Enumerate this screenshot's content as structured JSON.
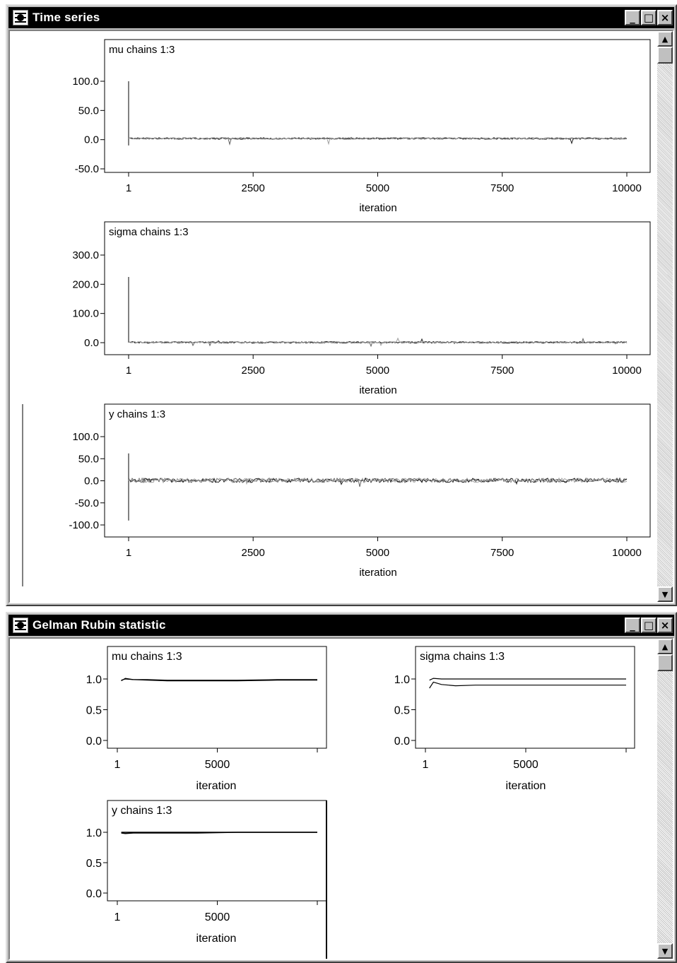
{
  "windows": {
    "time_series": {
      "title": "Time series",
      "buttons": {
        "minimize": "_",
        "maximize": "□",
        "close": "×"
      },
      "scroll": {
        "up": "▲",
        "down": "▼"
      }
    },
    "gelman_rubin": {
      "title": "Gelman Rubin statistic",
      "buttons": {
        "minimize": "_",
        "maximize": "□",
        "close": "×"
      },
      "scroll": {
        "up": "▲",
        "down": "▼"
      }
    }
  },
  "chart_data": [
    {
      "type": "line",
      "title": "mu chains 1:3",
      "xlabel": "iteration",
      "x_ticks": [
        "1",
        "2500",
        "5000",
        "7500",
        "10000"
      ],
      "y_ticks": [
        "100.0",
        "50.0",
        "0.0",
        "-50.0"
      ],
      "xlim": [
        1,
        10000
      ],
      "ylim": [
        -50,
        100
      ],
      "series_note_values": {
        "initial_spike_max": 100,
        "initial_spike_min": -10,
        "steady_level": 2
      }
    },
    {
      "type": "line",
      "title": "sigma chains 1:3",
      "xlabel": "iteration",
      "x_ticks": [
        "1",
        "2500",
        "5000",
        "7500",
        "10000"
      ],
      "y_ticks": [
        "300.0",
        "200.0",
        "100.0",
        "0.0"
      ],
      "xlim": [
        1,
        10000
      ],
      "ylim": [
        0,
        300
      ],
      "series_note_values": {
        "initial_spike_max": 225,
        "initial_spike_min": 0,
        "steady_level": 1
      }
    },
    {
      "type": "line",
      "title": "y chains 1:3",
      "xlabel": "iteration",
      "x_ticks": [
        "1",
        "2500",
        "5000",
        "7500",
        "10000"
      ],
      "y_ticks": [
        "100.0",
        "50.0",
        "0.0",
        "-50.0",
        "-100.0"
      ],
      "xlim": [
        1,
        10000
      ],
      "ylim": [
        -100,
        100
      ],
      "series_note_values": {
        "initial_spike_max": 62,
        "initial_spike_min": -90,
        "steady_level": 1
      }
    },
    {
      "type": "line",
      "title": "mu chains 1:3",
      "xlabel": "iteration",
      "x_ticks": [
        "1",
        "5000"
      ],
      "y_ticks": [
        "1.0",
        "0.5",
        "0.0"
      ],
      "xlim": [
        1,
        10000
      ],
      "ylim": [
        0,
        1
      ],
      "series": [
        {
          "x": [
            200,
            400,
            800,
            1500,
            2500,
            4000,
            6000,
            8000,
            10000
          ],
          "values": [
            0.97,
            1.01,
            0.99,
            0.98,
            0.97,
            0.97,
            0.97,
            0.98,
            0.98
          ]
        },
        {
          "x": [
            200,
            400,
            800,
            1500,
            2500,
            4000,
            6000,
            8000,
            10000
          ],
          "values": [
            0.98,
            1.0,
            0.99,
            0.99,
            0.98,
            0.98,
            0.98,
            0.99,
            0.99
          ]
        }
      ]
    },
    {
      "type": "line",
      "title": "sigma chains 1:3",
      "xlabel": "iteration",
      "x_ticks": [
        "1",
        "5000"
      ],
      "y_ticks": [
        "1.0",
        "0.5",
        "0.0"
      ],
      "xlim": [
        1,
        10000
      ],
      "ylim": [
        0,
        1
      ],
      "series": [
        {
          "x": [
            200,
            400,
            800,
            1500,
            2500,
            4000,
            6000,
            8000,
            10000
          ],
          "values": [
            0.85,
            0.95,
            0.91,
            0.89,
            0.9,
            0.9,
            0.9,
            0.9,
            0.9
          ]
        },
        {
          "x": [
            200,
            400,
            800,
            1500,
            2500,
            4000,
            6000,
            8000,
            10000
          ],
          "values": [
            0.98,
            1.01,
            1.0,
            1.0,
            1.0,
            1.0,
            1.0,
            1.0,
            1.0
          ]
        }
      ]
    },
    {
      "type": "line",
      "title": "y chains 1:3",
      "xlabel": "iteration",
      "x_ticks": [
        "1",
        "5000"
      ],
      "y_ticks": [
        "1.0",
        "0.5",
        "0.0"
      ],
      "xlim": [
        1,
        10000
      ],
      "ylim": [
        0,
        1
      ],
      "series": [
        {
          "x": [
            200,
            400,
            800,
            1500,
            2500,
            4000,
            6000,
            8000,
            10000
          ],
          "values": [
            0.99,
            0.98,
            0.99,
            0.99,
            0.99,
            0.99,
            1.0,
            1.0,
            1.0
          ]
        },
        {
          "x": [
            200,
            400,
            800,
            1500,
            2500,
            4000,
            6000,
            8000,
            10000
          ],
          "values": [
            1.0,
            1.0,
            1.0,
            1.0,
            1.0,
            1.0,
            1.0,
            1.0,
            1.0
          ]
        }
      ]
    }
  ]
}
